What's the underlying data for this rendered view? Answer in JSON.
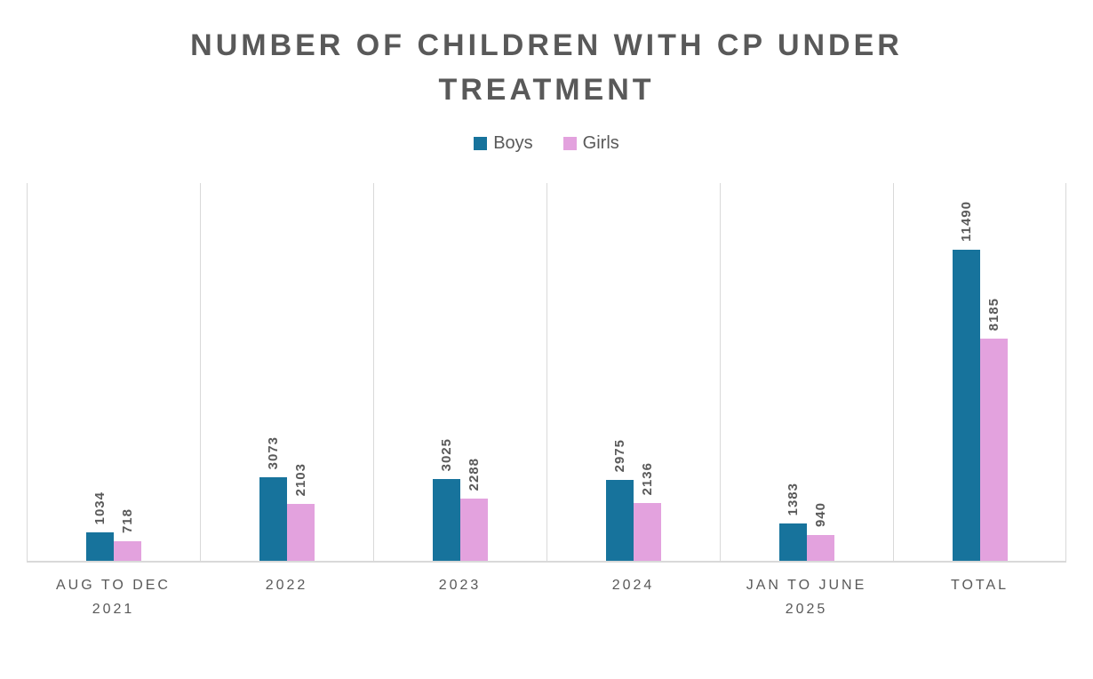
{
  "title": "NUMBER OF CHILDREN WITH CP UNDER TREATMENT",
  "colors": {
    "boys": "#17739C",
    "girls": "#E3A2DE",
    "text": "#595959",
    "grid": "#D9D9D9",
    "background": "#FFFFFF"
  },
  "chart_data": {
    "type": "bar",
    "title": "NUMBER OF CHILDREN WITH CP UNDER TREATMENT",
    "categories": [
      "AUG TO DEC 2021",
      "2022",
      "2023",
      "2024",
      "JAN TO JUNE 2025",
      "TOTAL"
    ],
    "series": [
      {
        "name": "Boys",
        "color": "#17739C",
        "values": [
          1034,
          3073,
          3025,
          2975,
          1383,
          11490
        ]
      },
      {
        "name": "Girls",
        "color": "#E3A2DE",
        "values": [
          718,
          2103,
          2288,
          2136,
          940,
          8185
        ]
      }
    ],
    "xlabel": "",
    "ylabel": "",
    "ylim": [
      0,
      14000
    ],
    "y_axis_visible": false,
    "grid": "vertical-panel-dividers",
    "legend_position": "top",
    "data_labels": "values-rotated-90-above-bars"
  }
}
